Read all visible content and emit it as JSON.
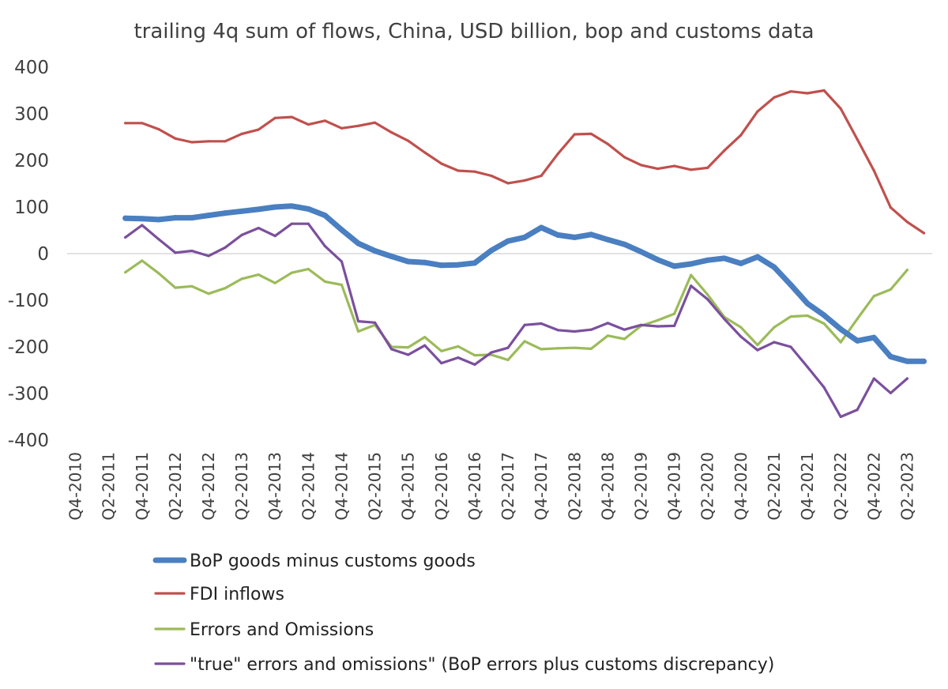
{
  "chart_data": {
    "type": "line",
    "title": "trailing 4q sum of flows, China, USD billion, bop and customs data",
    "xlabel": "",
    "ylabel": "",
    "ylim": [
      -400,
      400
    ],
    "yticks": [
      400,
      300,
      200,
      100,
      0,
      -100,
      -200,
      -300,
      -400
    ],
    "ytick_labels": [
      "400",
      "300",
      "200",
      "100",
      "0",
      "-100",
      "-200",
      "-300",
      "-400"
    ],
    "x": [
      "Q4-2010",
      "Q1-2011",
      "Q2-2011",
      "Q3-2011",
      "Q4-2011",
      "Q1-2012",
      "Q2-2012",
      "Q3-2012",
      "Q4-2012",
      "Q1-2013",
      "Q2-2013",
      "Q3-2013",
      "Q4-2013",
      "Q1-2014",
      "Q2-2014",
      "Q3-2014",
      "Q4-2014",
      "Q1-2015",
      "Q2-2015",
      "Q3-2015",
      "Q4-2015",
      "Q1-2016",
      "Q2-2016",
      "Q3-2016",
      "Q4-2016",
      "Q1-2017",
      "Q2-2017",
      "Q3-2017",
      "Q4-2017",
      "Q1-2018",
      "Q2-2018",
      "Q3-2018",
      "Q4-2018",
      "Q1-2019",
      "Q2-2019",
      "Q3-2019",
      "Q4-2019",
      "Q1-2020",
      "Q2-2020",
      "Q3-2020",
      "Q4-2020",
      "Q1-2021",
      "Q2-2021",
      "Q3-2021",
      "Q4-2021",
      "Q1-2022",
      "Q2-2022",
      "Q3-2022",
      "Q4-2022",
      "Q1-2023",
      "Q2-2023",
      "Q3-2023"
    ],
    "x_tick_labels": [
      "Q4-2010",
      "Q2-2011",
      "Q4-2011",
      "Q2-2012",
      "Q4-2012",
      "Q2-2013",
      "Q4-2013",
      "Q2-2014",
      "Q4-2014",
      "Q2-2015",
      "Q4-2015",
      "Q2-2016",
      "Q4-2016",
      "Q2-2017",
      "Q4-2017",
      "Q2-2018",
      "Q4-2018",
      "Q2-2019",
      "Q4-2019",
      "Q2-2020",
      "Q4-2020",
      "Q2-2021",
      "Q4-2021",
      "Q2-2022",
      "Q4-2022",
      "Q2-2023"
    ],
    "grid": false,
    "legend_placement": "bottom",
    "series": [
      {
        "name": "BoP goods minus customs goods",
        "color": "#4a7fc1",
        "width": "thick",
        "values": [
          null,
          null,
          null,
          76,
          75,
          73,
          77,
          77,
          82,
          87,
          91,
          95,
          100,
          102,
          96,
          82,
          51,
          22,
          6,
          -6,
          -17,
          -19,
          -25,
          -24,
          -20,
          7,
          27,
          35,
          56,
          40,
          35,
          41,
          30,
          20,
          4,
          -13,
          -27,
          -22,
          -14,
          -10,
          -21,
          -7,
          -29,
          -67,
          -107,
          -132,
          -162,
          -187,
          -180,
          -221,
          -231,
          -231
        ]
      },
      {
        "name": "FDI inflows",
        "color": "#c0504d",
        "width": "normal",
        "values": [
          null,
          null,
          null,
          280,
          280,
          267,
          247,
          239,
          241,
          241,
          257,
          266,
          291,
          293,
          277,
          285,
          269,
          274,
          281,
          260,
          242,
          217,
          193,
          178,
          176,
          167,
          151,
          157,
          167,
          214,
          256,
          257,
          235,
          207,
          190,
          182,
          188,
          180,
          184,
          221,
          254,
          305,
          335,
          348,
          344,
          350,
          311,
          245,
          178,
          99,
          68,
          44
        ]
      },
      {
        "name": "Errors and Omissions",
        "color": "#9bbb59",
        "width": "normal",
        "values": [
          null,
          null,
          null,
          -40,
          -15,
          -42,
          -73,
          -70,
          -86,
          -74,
          -54,
          -45,
          -63,
          -41,
          -33,
          -60,
          -67,
          -167,
          -153,
          -200,
          -201,
          -179,
          -209,
          -199,
          -218,
          -217,
          -228,
          -188,
          -205,
          -203,
          -202,
          -204,
          -176,
          -183,
          -155,
          -143,
          -129,
          -46,
          -88,
          -136,
          -158,
          -196,
          -158,
          -135,
          -133,
          -150,
          -190,
          -140,
          -91,
          -77,
          -35,
          null
        ]
      },
      {
        "name": "\"true\" errors and omissions\" (BoP errors plus customs discrepancy)",
        "color": "#7b4f9d",
        "width": "normal",
        "values": [
          null,
          null,
          null,
          35,
          61,
          31,
          2,
          6,
          -5,
          13,
          40,
          55,
          38,
          64,
          64,
          16,
          -17,
          -145,
          -148,
          -205,
          -217,
          -197,
          -235,
          -223,
          -238,
          -212,
          -202,
          -153,
          -150,
          -164,
          -167,
          -163,
          -149,
          -163,
          -153,
          -156,
          -155,
          -69,
          -98,
          -140,
          -178,
          -207,
          -190,
          -200,
          -243,
          -287,
          -350,
          -335,
          -268,
          -299,
          -268,
          null
        ]
      }
    ]
  }
}
